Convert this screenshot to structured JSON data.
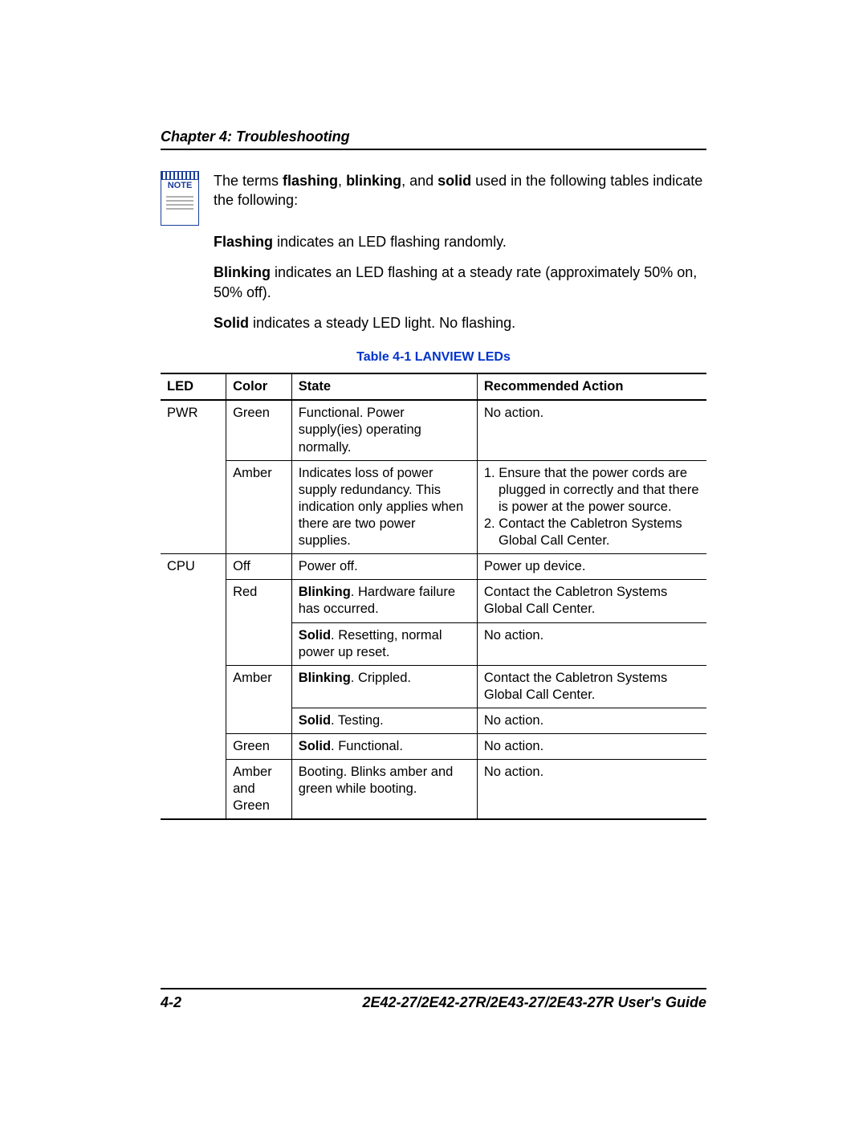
{
  "chapter_header": "Chapter 4: Troubleshooting",
  "note_icon_label": "NOTE",
  "note_intro": {
    "pre": "The terms ",
    "t1": "flashing",
    "sep1": ", ",
    "t2": "blinking",
    "sep2": ", and ",
    "t3": "solid",
    "post": " used in the following tables indicate the following:"
  },
  "defs": {
    "flashing_term": "Flashing",
    "flashing_text": " indicates an LED flashing randomly.",
    "blinking_term": "Blinking",
    "blinking_text": " indicates an LED flashing at a steady rate (approximately 50% on, 50% off).",
    "solid_term": "Solid",
    "solid_text": " indicates a steady LED light. No flashing."
  },
  "table_caption": "Table 4-1    LANVIEW LEDs",
  "headers": {
    "led": "LED",
    "color": "Color",
    "state": "State",
    "action": "Recommended Action"
  },
  "rows": {
    "pwr_led": "PWR",
    "pwr_green_color": "Green",
    "pwr_green_state": "Functional. Power supply(ies) operating normally.",
    "pwr_green_action": "No action.",
    "pwr_amber_color": "Amber",
    "pwr_amber_state": "Indicates loss of power supply redundancy. This indication only applies when there are two power supplies.",
    "pwr_amber_a1": "1. Ensure that the power cords are plugged in correctly and that there is power at the power source.",
    "pwr_amber_a2": "2. Contact the Cabletron Systems Global Call Center.",
    "cpu_led": "CPU",
    "cpu_off_color": "Off",
    "cpu_off_state": "Power off.",
    "cpu_off_action": "Power up device.",
    "cpu_red_color": "Red",
    "cpu_red_blink_b": "Blinking",
    "cpu_red_blink_t": ". Hardware failure has occurred.",
    "cpu_red_blink_action": "Contact the Cabletron Systems Global Call Center.",
    "cpu_red_solid_b": "Solid",
    "cpu_red_solid_t": ". Resetting, normal power up reset.",
    "cpu_red_solid_action": "No action.",
    "cpu_amber_color": "Amber",
    "cpu_amber_blink_b": "Blinking",
    "cpu_amber_blink_t": ". Crippled.",
    "cpu_amber_blink_action": "Contact the Cabletron Systems Global Call Center.",
    "cpu_amber_solid_b": "Solid",
    "cpu_amber_solid_t": ". Testing.",
    "cpu_amber_solid_action": "No action.",
    "cpu_green_color": "Green",
    "cpu_green_b": "Solid",
    "cpu_green_t": ". Functional.",
    "cpu_green_action": "No action.",
    "cpu_ag_color": "Amber and Green",
    "cpu_ag_state": "Booting. Blinks amber and green while booting.",
    "cpu_ag_action": "No action."
  },
  "footer": {
    "page": "4-2",
    "title": "2E42-27/2E42-27R/2E43-27/2E43-27R User's Guide"
  }
}
